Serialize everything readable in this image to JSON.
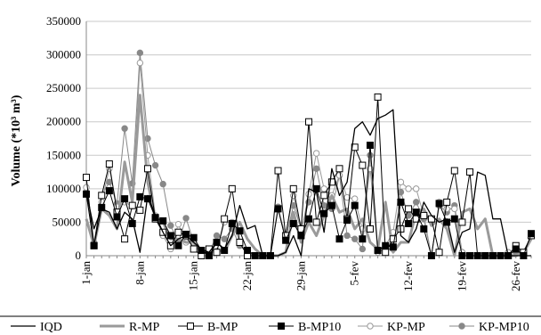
{
  "chart_data": {
    "type": "line",
    "title": "",
    "xlabel": "",
    "ylabel": "Volume (*10³ m³)",
    "ylim": [
      0,
      350000
    ],
    "yticks": [
      "0",
      "50000",
      "100000",
      "150000",
      "200000",
      "250000",
      "300000",
      "350000"
    ],
    "xticks": [
      {
        "day": 1,
        "label": "1-jan"
      },
      {
        "day": 8,
        "label": "8-jan"
      },
      {
        "day": 15,
        "label": "15-jan"
      },
      {
        "day": 22,
        "label": "22-jan"
      },
      {
        "day": 29,
        "label": "29-jan"
      },
      {
        "day": 36,
        "label": "5-fev"
      },
      {
        "day": 43,
        "label": "12-fev"
      },
      {
        "day": 50,
        "label": "19-fev"
      },
      {
        "day": 57,
        "label": "26-fev"
      }
    ],
    "legend_position": "bottom",
    "grid": "horizontal",
    "x": [
      1,
      2,
      3,
      4,
      5,
      6,
      7,
      8,
      9,
      10,
      11,
      12,
      13,
      14,
      15,
      16,
      17,
      18,
      19,
      20,
      21,
      22,
      23,
      24,
      25,
      26,
      27,
      28,
      29,
      30,
      31,
      32,
      33,
      34,
      35,
      36,
      37,
      38,
      39,
      40,
      41,
      42,
      43,
      44,
      45,
      46,
      47,
      48,
      49,
      50,
      51,
      52,
      53,
      54,
      55,
      56,
      57,
      58,
      59
    ],
    "series": [
      {
        "name": "IQD",
        "color": "#000000",
        "style": "line",
        "values": [
          95000,
          40000,
          70000,
          65000,
          40000,
          65000,
          55000,
          5000,
          90000,
          60000,
          35000,
          15000,
          25000,
          30000,
          20000,
          10000,
          5000,
          20000,
          10000,
          30000,
          75000,
          40000,
          45000,
          0,
          0,
          0,
          5000,
          30000,
          0,
          100000,
          95000,
          35000,
          130000,
          90000,
          110000,
          190000,
          200000,
          180000,
          205000,
          210000,
          218000,
          30000,
          20000,
          40000,
          80000,
          60000,
          50000,
          55000,
          5000,
          35000,
          40000,
          125000,
          120000,
          55000,
          55000,
          0,
          0,
          0,
          0
        ]
      },
      {
        "name": "R-MP",
        "color": "#9a9a9a",
        "style": "thick",
        "values": [
          55000,
          15000,
          70000,
          60000,
          40000,
          140000,
          80000,
          240000,
          110000,
          55000,
          50000,
          25000,
          25000,
          20000,
          20000,
          5000,
          5000,
          10000,
          5000,
          30000,
          50000,
          25000,
          10000,
          0,
          0,
          0,
          5000,
          65000,
          20000,
          50000,
          30000,
          60000,
          90000,
          65000,
          70000,
          40000,
          55000,
          20000,
          10000,
          80000,
          5000,
          20000,
          20000,
          65000,
          70000,
          45000,
          55000,
          40000,
          0,
          65000,
          70000,
          40000,
          55000,
          0,
          0,
          0,
          0,
          5000,
          25000
        ]
      },
      {
        "name": "B-MP",
        "color": "#000000",
        "style": "open-square",
        "values": [
          117000,
          15000,
          90000,
          137000,
          65000,
          25000,
          75000,
          68000,
          130000,
          55000,
          35000,
          15000,
          35000,
          30000,
          10000,
          0,
          10000,
          5000,
          55000,
          100000,
          20000,
          0,
          0,
          0,
          0,
          127000,
          30000,
          100000,
          40000,
          200000,
          50000,
          90000,
          110000,
          130000,
          55000,
          162000,
          135000,
          40000,
          237000,
          5000,
          25000,
          40000,
          70000,
          55000,
          60000,
          55000,
          5000,
          80000,
          127000,
          50000,
          125000,
          0,
          0,
          0,
          0,
          0,
          15000,
          5000,
          30000
        ]
      },
      {
        "name": "B-MP10",
        "color": "#000000",
        "style": "filled-square",
        "values": [
          92000,
          15000,
          72000,
          97000,
          58000,
          85000,
          48000,
          88000,
          85000,
          57000,
          52000,
          30000,
          15000,
          32000,
          27000,
          8000,
          0,
          20000,
          8000,
          48000,
          37000,
          8000,
          0,
          0,
          0,
          70000,
          23000,
          48000,
          30000,
          55000,
          100000,
          63000,
          75000,
          25000,
          53000,
          75000,
          25000,
          165000,
          8000,
          15000,
          13000,
          80000,
          48000,
          65000,
          40000,
          0,
          78000,
          50000,
          55000,
          0,
          0,
          0,
          0,
          0,
          0,
          0,
          10000,
          0,
          33000
        ]
      },
      {
        "name": "KP-MP",
        "color": "#9a9a9a",
        "style": "open-circle",
        "values": [
          102000,
          20000,
          80000,
          130000,
          73000,
          80000,
          74000,
          288000,
          150000,
          60000,
          30000,
          10000,
          47000,
          20000,
          20000,
          5000,
          5000,
          5000,
          50000,
          50000,
          20000,
          5000,
          0,
          0,
          0,
          70000,
          30000,
          90000,
          35000,
          92000,
          153000,
          100000,
          90000,
          120000,
          87000,
          85000,
          40000,
          130000,
          5000,
          15000,
          35000,
          110000,
          100000,
          100000,
          60000,
          0,
          80000,
          70000,
          70000,
          5000,
          0,
          0,
          0,
          0,
          0,
          5000,
          10000,
          5000,
          30000
        ]
      },
      {
        "name": "KP-MP10",
        "color": "#888888",
        "style": "filled-circle",
        "values": [
          95000,
          15000,
          90000,
          110000,
          78000,
          190000,
          108000,
          303000,
          175000,
          135000,
          107000,
          45000,
          20000,
          56000,
          20000,
          5000,
          5000,
          30000,
          25000,
          40000,
          15000,
          5000,
          0,
          0,
          0,
          73000,
          25000,
          75000,
          40000,
          80000,
          130000,
          75000,
          70000,
          120000,
          30000,
          25000,
          10000,
          150000,
          5000,
          10000,
          10000,
          95000,
          60000,
          80000,
          55000,
          0,
          75000,
          65000,
          75000,
          5000,
          0,
          0,
          0,
          0,
          0,
          5000,
          5000,
          5000,
          30000
        ]
      }
    ]
  }
}
